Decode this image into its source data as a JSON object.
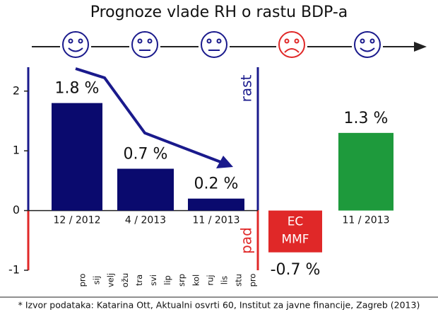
{
  "chart_data": {
    "type": "bar",
    "title": "Prognoze vlade RH o rastu BDP-a",
    "categories": [
      "12 / 2012",
      "4 / 2013",
      "11 / 2013",
      "EC MMF",
      "11 / 2013"
    ],
    "values": [
      1.8,
      0.7,
      0.2,
      -0.7,
      1.3
    ],
    "value_labels": [
      "1.8 %",
      "0.7 %",
      "0.2 %",
      "-0.7 %",
      "1.3 %"
    ],
    "colors": [
      "#0a0a6e",
      "#0a0a6e",
      "#0a0a6e",
      "#e02828",
      "#1e9a3c"
    ],
    "ylim": [
      -1,
      2.4
    ],
    "yticks": [
      -1,
      0,
      1,
      2
    ],
    "region_labels": {
      "positive": "rast",
      "negative": "pad"
    },
    "months": [
      "pro",
      "sij",
      "velj",
      "ožu",
      "tra",
      "svi",
      "lip",
      "srp",
      "kol",
      "ruj",
      "lis",
      "stu",
      "pro"
    ],
    "footnote": "* Izvor podataka: Katarina Ott, Aktualni osvrti 60, Institut za javne financije, Zagreb (2013)"
  }
}
